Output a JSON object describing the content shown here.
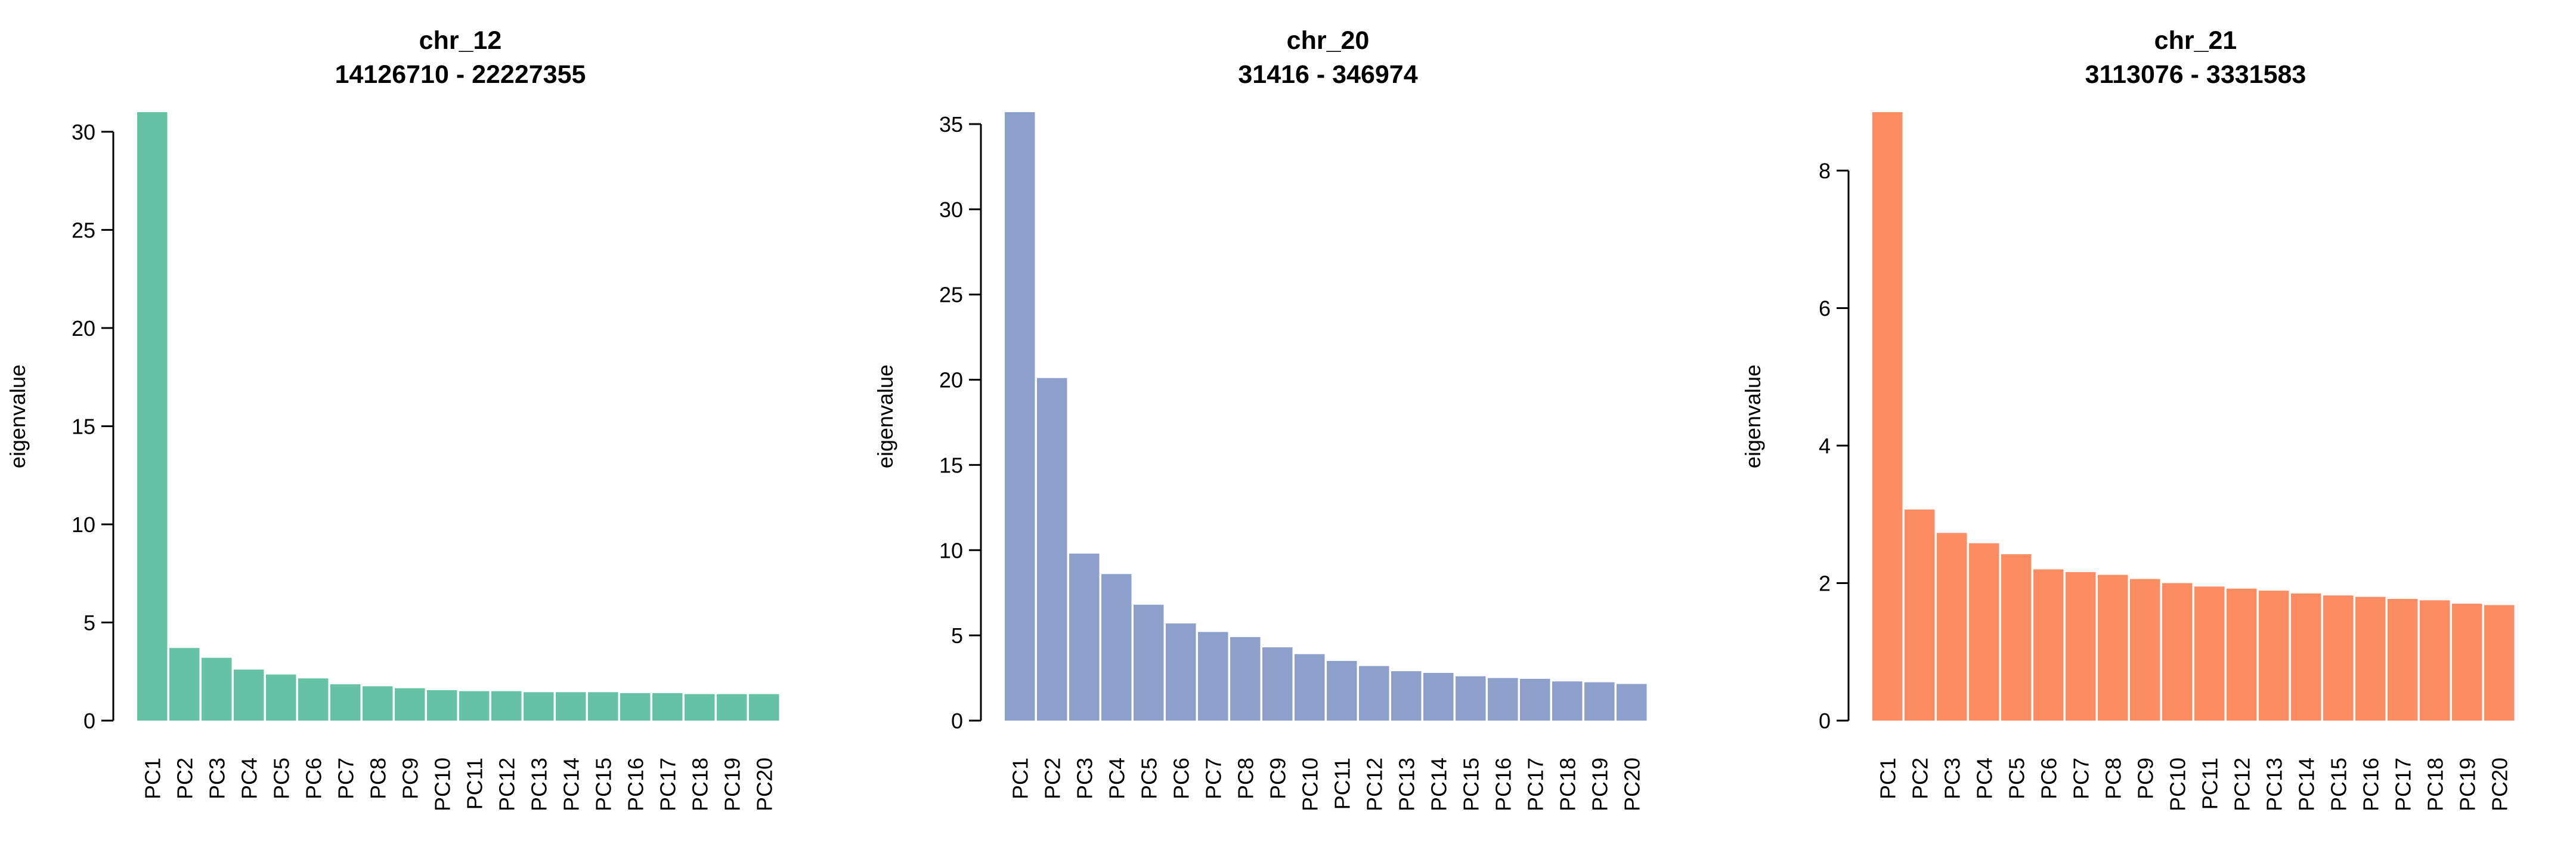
{
  "chart_data": [
    {
      "type": "bar",
      "title": "chr_12",
      "subtitle": "14126710 - 22227355",
      "ylabel": "eigenvalue",
      "xlabel": "",
      "color": "#66C2A5",
      "ylim": [
        0,
        31
      ],
      "yticks": [
        0,
        5,
        10,
        15,
        20,
        25,
        30
      ],
      "categories": [
        "PC1",
        "PC2",
        "PC3",
        "PC4",
        "PC5",
        "PC6",
        "PC7",
        "PC8",
        "PC9",
        "PC10",
        "PC11",
        "PC12",
        "PC13",
        "PC14",
        "PC15",
        "PC16",
        "PC17",
        "PC18",
        "PC19",
        "PC20"
      ],
      "values": [
        31,
        3.7,
        3.2,
        2.6,
        2.35,
        2.15,
        1.85,
        1.75,
        1.65,
        1.55,
        1.5,
        1.5,
        1.45,
        1.45,
        1.45,
        1.4,
        1.4,
        1.35,
        1.35,
        1.35
      ]
    },
    {
      "type": "bar",
      "title": "chr_20",
      "subtitle": "31416 - 346974",
      "ylabel": "eigenvalue",
      "xlabel": "",
      "color": "#8DA0CB",
      "ylim": [
        0,
        35.7
      ],
      "yticks": [
        0,
        5,
        10,
        15,
        20,
        25,
        30,
        35
      ],
      "categories": [
        "PC1",
        "PC2",
        "PC3",
        "PC4",
        "PC5",
        "PC6",
        "PC7",
        "PC8",
        "PC9",
        "PC10",
        "PC11",
        "PC12",
        "PC13",
        "PC14",
        "PC15",
        "PC16",
        "PC17",
        "PC18",
        "PC19",
        "PC20"
      ],
      "values": [
        35.7,
        20.1,
        9.8,
        8.6,
        6.8,
        5.7,
        5.2,
        4.9,
        4.3,
        3.9,
        3.5,
        3.2,
        2.9,
        2.8,
        2.6,
        2.5,
        2.45,
        2.3,
        2.25,
        2.15
      ]
    },
    {
      "type": "bar",
      "title": "chr_21",
      "subtitle": "3113076 - 3331583",
      "ylabel": "eigenvalue",
      "xlabel": "",
      "color": "#FC8D62",
      "ylim": [
        0,
        8.85
      ],
      "yticks": [
        0,
        2,
        4,
        6,
        8
      ],
      "categories": [
        "PC1",
        "PC2",
        "PC3",
        "PC4",
        "PC5",
        "PC6",
        "PC7",
        "PC8",
        "PC9",
        "PC10",
        "PC11",
        "PC12",
        "PC13",
        "PC14",
        "PC15",
        "PC16",
        "PC17",
        "PC18",
        "PC19",
        "PC20"
      ],
      "values": [
        8.85,
        3.07,
        2.73,
        2.58,
        2.42,
        2.2,
        2.16,
        2.12,
        2.06,
        2.0,
        1.95,
        1.92,
        1.89,
        1.85,
        1.82,
        1.8,
        1.77,
        1.75,
        1.7,
        1.68
      ]
    }
  ]
}
